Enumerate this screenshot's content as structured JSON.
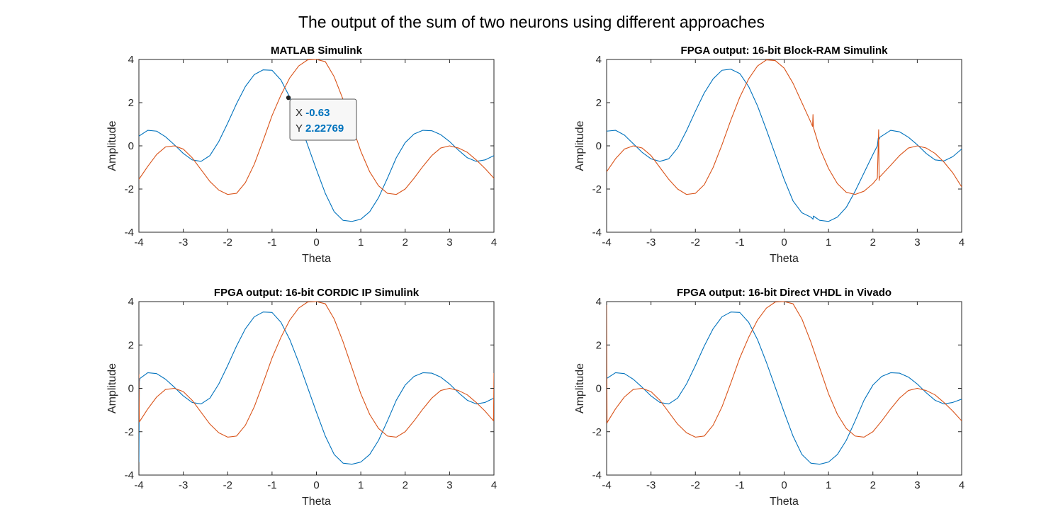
{
  "figure": {
    "title": "The output of the sum of two neurons using different approaches",
    "colors": {
      "blue": "#0072bd",
      "orange": "#d95319",
      "axis": "#262626"
    }
  },
  "chart_data": [
    {
      "type": "line",
      "title": "MATLAB Simulink",
      "xlabel": "Theta",
      "ylabel": "Amplitude",
      "xlim": [
        -4,
        4
      ],
      "ylim": [
        -4,
        4
      ],
      "xticks": [
        -4,
        -3,
        -2,
        -1,
        0,
        1,
        2,
        3,
        4
      ],
      "yticks": [
        -4,
        -2,
        0,
        2,
        4
      ],
      "grid": false,
      "series": [
        {
          "color": "#0072bd",
          "x": [
            -4,
            -3.8,
            -3.6,
            -3.4,
            -3.2,
            -3,
            -2.8,
            -2.6,
            -2.4,
            -2.2,
            -2,
            -1.8,
            -1.6,
            -1.4,
            -1.2,
            -1,
            -0.8,
            -0.6,
            -0.4,
            -0.2,
            0,
            0.2,
            0.4,
            0.6,
            0.8,
            1,
            1.2,
            1.4,
            1.6,
            1.8,
            2,
            2.2,
            2.4,
            2.6,
            2.8,
            3,
            3.2,
            3.4,
            3.6,
            3.8,
            4
          ],
          "y": [
            0.45,
            0.72,
            0.68,
            0.42,
            0.05,
            -0.35,
            -0.65,
            -0.72,
            -0.45,
            0.2,
            1.05,
            1.95,
            2.75,
            3.3,
            3.52,
            3.5,
            3.05,
            2.25,
            1.2,
            0.05,
            -1.1,
            -2.2,
            -3.05,
            -3.45,
            -3.5,
            -3.4,
            -3.05,
            -2.4,
            -1.5,
            -0.55,
            0.15,
            0.55,
            0.72,
            0.7,
            0.52,
            0.2,
            -0.2,
            -0.55,
            -0.72,
            -0.65,
            -0.45
          ]
        },
        {
          "color": "#d95319",
          "x": [
            -4,
            -3.8,
            -3.6,
            -3.4,
            -3.2,
            -3,
            -2.8,
            -2.6,
            -2.4,
            -2.2,
            -2,
            -1.8,
            -1.6,
            -1.4,
            -1.2,
            -1,
            -0.8,
            -0.6,
            -0.4,
            -0.2,
            0,
            0.2,
            0.4,
            0.6,
            0.8,
            1,
            1.2,
            1.4,
            1.6,
            1.8,
            2,
            2.2,
            2.4,
            2.6,
            2.8,
            3,
            3.2,
            3.4,
            3.6,
            3.8,
            4
          ],
          "y": [
            -1.55,
            -0.95,
            -0.4,
            -0.05,
            0,
            -0.15,
            -0.55,
            -1.1,
            -1.65,
            -2.05,
            -2.25,
            -2.2,
            -1.7,
            -0.85,
            0.25,
            1.4,
            2.35,
            3.15,
            3.7,
            3.98,
            4,
            3.9,
            3.2,
            2.15,
            0.95,
            -0.25,
            -1.2,
            -1.85,
            -2.2,
            -2.25,
            -2.0,
            -1.5,
            -0.95,
            -0.45,
            -0.1,
            0,
            -0.1,
            -0.3,
            -0.65,
            -1.05,
            -1.5
          ]
        }
      ],
      "datatip": {
        "x_label": "X",
        "x_value": "-0.63",
        "y_label": "Y",
        "y_value": "2.22769",
        "x": -0.63,
        "y": 2.22769
      }
    },
    {
      "type": "line",
      "title": "FPGA output: 16-bit Block-RAM Simulink",
      "xlabel": "Theta",
      "ylabel": "Amplitude",
      "xlim": [
        -4,
        4
      ],
      "ylim": [
        -4,
        4
      ],
      "xticks": [
        -4,
        -3,
        -2,
        -1,
        0,
        1,
        2,
        3,
        4
      ],
      "yticks": [
        -4,
        -2,
        0,
        2,
        4
      ],
      "grid": false,
      "series": [
        {
          "color": "#0072bd",
          "x": [
            -4,
            -3.8,
            -3.6,
            -3.4,
            -3.2,
            -3,
            -2.8,
            -2.6,
            -2.4,
            -2.2,
            -2,
            -1.8,
            -1.6,
            -1.4,
            -1.2,
            -1,
            -0.8,
            -0.6,
            -0.4,
            -0.2,
            0,
            0.2,
            0.4,
            0.6,
            0.63,
            0.65,
            0.66,
            0.8,
            1,
            1.2,
            1.4,
            1.6,
            1.8,
            2,
            2.1,
            2.12,
            2.14,
            2.16,
            2.4,
            2.6,
            2.8,
            3,
            3.2,
            3.4,
            3.6,
            3.8,
            4
          ],
          "y": [
            0.68,
            0.72,
            0.5,
            0.1,
            -0.3,
            -0.6,
            -0.72,
            -0.6,
            -0.1,
            0.7,
            1.6,
            2.45,
            3.1,
            3.5,
            3.55,
            3.35,
            2.75,
            1.85,
            0.75,
            -0.4,
            -1.55,
            -2.55,
            -3.1,
            -3.3,
            -3.35,
            -3.4,
            -3.25,
            -3.45,
            -3.5,
            -3.3,
            -2.85,
            -2.1,
            -1.25,
            -0.4,
            0.0,
            0.35,
            0.3,
            0.4,
            0.72,
            0.65,
            0.4,
            0.05,
            -0.35,
            -0.65,
            -0.7,
            -0.5,
            -0.15
          ]
        },
        {
          "color": "#d95319",
          "x": [
            -4,
            -3.8,
            -3.6,
            -3.4,
            -3.2,
            -3,
            -2.8,
            -2.6,
            -2.4,
            -2.2,
            -2,
            -1.8,
            -1.6,
            -1.4,
            -1.2,
            -1,
            -0.8,
            -0.6,
            -0.4,
            -0.2,
            0,
            0.2,
            0.4,
            0.6,
            0.64,
            0.65,
            0.66,
            0.8,
            1,
            1.2,
            1.4,
            1.6,
            1.8,
            2,
            2.1,
            2.13,
            2.14,
            2.15,
            2.4,
            2.6,
            2.8,
            3,
            3.2,
            3.4,
            3.6,
            3.8,
            4
          ],
          "y": [
            -1.2,
            -0.6,
            -0.15,
            0,
            -0.1,
            -0.45,
            -1.0,
            -1.55,
            -2.0,
            -2.25,
            -2.2,
            -1.8,
            -1.0,
            0.05,
            1.2,
            2.25,
            3.1,
            3.7,
            3.98,
            3.95,
            3.6,
            2.9,
            2.0,
            1.1,
            0.9,
            1.45,
            0.85,
            -0.1,
            -1.05,
            -1.75,
            -2.15,
            -2.25,
            -2.1,
            -1.75,
            -1.5,
            0.75,
            -1.6,
            -1.45,
            -0.9,
            -0.45,
            -0.1,
            0,
            -0.1,
            -0.35,
            -0.75,
            -1.25,
            -1.9
          ]
        }
      ]
    },
    {
      "type": "line",
      "title": "FPGA output: 16-bit CORDIC IP Simulink",
      "xlabel": "Theta",
      "ylabel": "Amplitude",
      "xlim": [
        -4,
        4
      ],
      "ylim": [
        -4,
        4
      ],
      "xticks": [
        -4,
        -3,
        -2,
        -1,
        0,
        1,
        2,
        3,
        4
      ],
      "yticks": [
        -4,
        -2,
        0,
        2,
        4
      ],
      "grid": false,
      "series": [
        {
          "color": "#0072bd",
          "x": [
            -4,
            -3.99,
            -3.98,
            -3.8,
            -3.6,
            -3.4,
            -3.2,
            -3,
            -2.8,
            -2.6,
            -2.4,
            -2.2,
            -2,
            -1.8,
            -1.6,
            -1.4,
            -1.2,
            -1,
            -0.8,
            -0.6,
            -0.4,
            -0.2,
            0,
            0.2,
            0.4,
            0.6,
            0.8,
            1,
            1.2,
            1.4,
            1.6,
            1.8,
            2,
            2.2,
            2.4,
            2.6,
            2.8,
            3,
            3.2,
            3.4,
            3.6,
            3.8,
            4
          ],
          "y": [
            -3.4,
            0.3,
            0.45,
            0.72,
            0.68,
            0.42,
            0.05,
            -0.35,
            -0.65,
            -0.72,
            -0.45,
            0.2,
            1.05,
            1.95,
            2.75,
            3.3,
            3.52,
            3.5,
            3.05,
            2.25,
            1.2,
            0.05,
            -1.1,
            -2.2,
            -3.05,
            -3.45,
            -3.5,
            -3.4,
            -3.05,
            -2.4,
            -1.5,
            -0.55,
            0.15,
            0.55,
            0.72,
            0.7,
            0.52,
            0.2,
            -0.2,
            -0.55,
            -0.72,
            -0.65,
            -0.45
          ]
        },
        {
          "color": "#d95319",
          "x": [
            -4,
            -3.99,
            -3.8,
            -3.6,
            -3.4,
            -3.2,
            -3,
            -2.8,
            -2.6,
            -2.4,
            -2.2,
            -2,
            -1.8,
            -1.6,
            -1.4,
            -1.2,
            -1,
            -0.8,
            -0.6,
            -0.4,
            -0.2,
            0,
            0.2,
            0.4,
            0.6,
            0.8,
            1,
            1.2,
            1.4,
            1.6,
            1.8,
            2,
            2.2,
            2.4,
            2.6,
            2.8,
            3,
            3.2,
            3.4,
            3.6,
            3.8,
            3.99,
            4
          ],
          "y": [
            0.65,
            -1.55,
            -0.95,
            -0.4,
            -0.05,
            0,
            -0.15,
            -0.55,
            -1.1,
            -1.65,
            -2.05,
            -2.25,
            -2.2,
            -1.7,
            -0.85,
            0.25,
            1.4,
            2.35,
            3.15,
            3.7,
            3.98,
            4,
            3.9,
            3.2,
            2.15,
            0.95,
            -0.25,
            -1.2,
            -1.85,
            -2.2,
            -2.25,
            -2.0,
            -1.5,
            -0.95,
            -0.45,
            -0.1,
            0,
            -0.1,
            -0.3,
            -0.65,
            -1.05,
            -1.5,
            0.7
          ]
        }
      ]
    },
    {
      "type": "line",
      "title": "FPGA output: 16-bit Direct VHDL in Vivado",
      "xlabel": "Theta",
      "ylabel": "Amplitude",
      "xlim": [
        -4,
        4
      ],
      "ylim": [
        -4,
        4
      ],
      "xticks": [
        -4,
        -3,
        -2,
        -1,
        0,
        1,
        2,
        3,
        4
      ],
      "yticks": [
        -4,
        -2,
        0,
        2,
        4
      ],
      "grid": false,
      "series": [
        {
          "color": "#0072bd",
          "x": [
            -4,
            -3.8,
            -3.6,
            -3.4,
            -3.2,
            -3,
            -2.8,
            -2.6,
            -2.4,
            -2.2,
            -2,
            -1.8,
            -1.6,
            -1.4,
            -1.2,
            -1,
            -0.8,
            -0.6,
            -0.4,
            -0.2,
            0,
            0.2,
            0.4,
            0.6,
            0.8,
            1,
            1.2,
            1.4,
            1.6,
            1.8,
            2,
            2.2,
            2.4,
            2.6,
            2.8,
            3,
            3.2,
            3.4,
            3.6,
            3.8,
            4
          ],
          "y": [
            0.45,
            0.72,
            0.68,
            0.42,
            0.05,
            -0.35,
            -0.65,
            -0.72,
            -0.45,
            0.2,
            1.05,
            1.95,
            2.75,
            3.3,
            3.52,
            3.5,
            3.05,
            2.25,
            1.2,
            0.05,
            -1.1,
            -2.2,
            -3.05,
            -3.45,
            -3.5,
            -3.4,
            -3.05,
            -2.4,
            -1.5,
            -0.55,
            0.15,
            0.55,
            0.72,
            0.7,
            0.52,
            0.2,
            -0.2,
            -0.55,
            -0.72,
            -0.65,
            -0.5
          ]
        },
        {
          "color": "#d95319",
          "x": [
            -4,
            -3.99,
            -3.98,
            -3.8,
            -3.6,
            -3.4,
            -3.2,
            -3,
            -2.8,
            -2.6,
            -2.4,
            -2.2,
            -2,
            -1.8,
            -1.6,
            -1.4,
            -1.2,
            -1,
            -0.8,
            -0.6,
            -0.4,
            -0.2,
            0,
            0.2,
            0.4,
            0.6,
            0.8,
            1,
            1.2,
            1.4,
            1.6,
            1.8,
            2,
            2.2,
            2.4,
            2.6,
            2.8,
            3,
            3.2,
            3.4,
            3.6,
            3.8,
            4
          ],
          "y": [
            4,
            -1.6,
            -1.55,
            -0.95,
            -0.4,
            -0.05,
            0,
            -0.15,
            -0.55,
            -1.1,
            -1.65,
            -2.05,
            -2.25,
            -2.2,
            -1.7,
            -0.85,
            0.25,
            1.4,
            2.35,
            3.15,
            3.7,
            3.98,
            4,
            3.9,
            3.2,
            2.15,
            0.95,
            -0.25,
            -1.2,
            -1.85,
            -2.2,
            -2.25,
            -2.0,
            -1.5,
            -0.95,
            -0.45,
            -0.1,
            0,
            -0.1,
            -0.3,
            -0.65,
            -1.05,
            -1.5
          ]
        }
      ]
    }
  ]
}
